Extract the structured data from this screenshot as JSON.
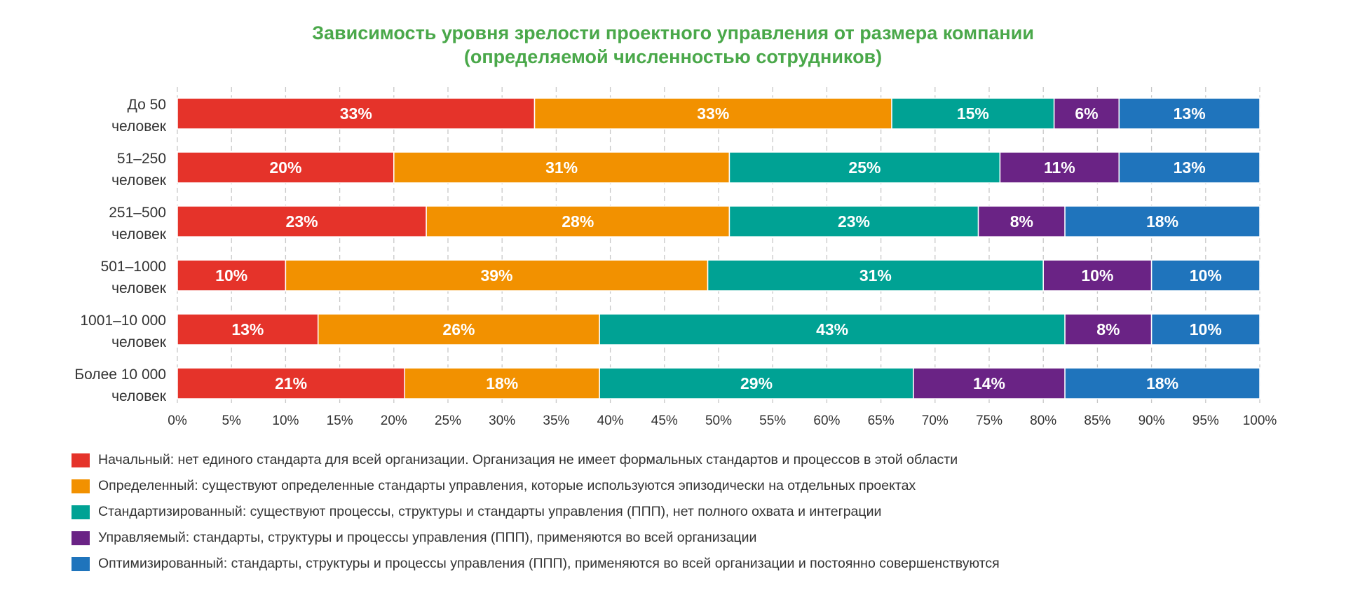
{
  "chart_data": {
    "type": "bar",
    "orientation": "horizontal",
    "stacked": true,
    "title_lines": [
      "Зависимость уровня зрелости проектного управления от размера компании",
      "(определяемой численностью сотрудников)"
    ],
    "categories": [
      [
        "До 50",
        "человек"
      ],
      [
        "51–250",
        "человек"
      ],
      [
        "251–500",
        "человек"
      ],
      [
        "501–1000",
        "человек"
      ],
      [
        "1001–10 000",
        "человек"
      ],
      [
        "Более 10 000",
        "человек"
      ]
    ],
    "series": [
      {
        "name": "Начальный: нет единого стандарта для всей организации. Организация не имеет формальных стандартов и процессов в этой области",
        "color": "#e5332a",
        "values": [
          33,
          20,
          23,
          10,
          13,
          21
        ]
      },
      {
        "name": "Определенный: существуют определенные стандарты управления, которые используются эпизодически на отдельных проектах",
        "color": "#f29100",
        "values": [
          33,
          31,
          28,
          39,
          26,
          18
        ]
      },
      {
        "name": "Стандартизированный: существуют процессы, структуры и стандарты управления (ППП), нет полного охвата и интеграции",
        "color": "#00a294",
        "values": [
          15,
          25,
          23,
          31,
          43,
          29
        ]
      },
      {
        "name": "Управляемый: стандарты, структуры и процессы управления (ППП), применяются во всей организации",
        "color": "#6a2385",
        "values": [
          6,
          11,
          8,
          10,
          8,
          14
        ]
      },
      {
        "name": "Оптимизированный: стандарты, структуры и процессы управления (ППП), применяются во всей организации и постоянно совершенствуются",
        "color": "#1f74bc",
        "values": [
          13,
          13,
          18,
          10,
          10,
          18
        ]
      }
    ],
    "value_suffix": "%",
    "xlim": [
      0,
      100
    ],
    "xticks": [
      0,
      5,
      10,
      15,
      20,
      25,
      30,
      35,
      40,
      45,
      50,
      55,
      60,
      65,
      70,
      75,
      80,
      85,
      90,
      95,
      100
    ],
    "tick_suffix": "%",
    "grid": "vertical dashed",
    "legend_position": "bottom-left",
    "title_color": "#4aa84a"
  }
}
